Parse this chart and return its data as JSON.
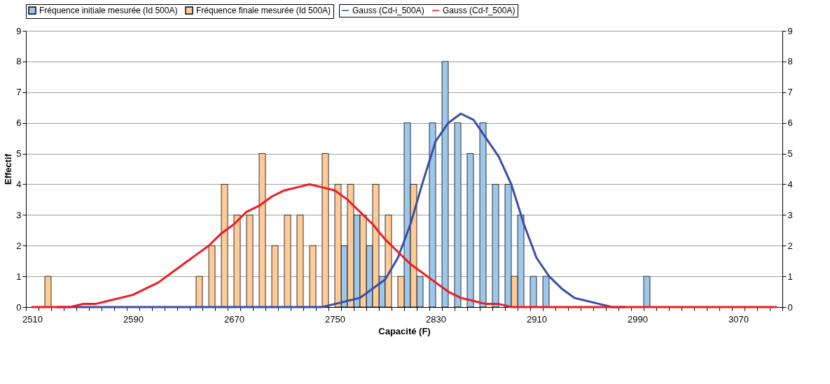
{
  "chart_data": {
    "type": "bar",
    "xlabel": "Capacité (F)",
    "ylabel": "Effectif",
    "ylim": [
      0,
      9
    ],
    "yticks": [
      0,
      1,
      2,
      3,
      4,
      5,
      6,
      7,
      8,
      9
    ],
    "y2lim": [
      0,
      9
    ],
    "y2ticks": [
      0,
      1,
      2,
      3,
      4,
      5,
      6,
      7,
      8,
      9
    ],
    "grid": "y",
    "legend": "top",
    "categories": [
      "2510",
      null,
      null,
      null,
      null,
      null,
      null,
      null,
      "2590",
      null,
      null,
      null,
      null,
      null,
      null,
      null,
      "2670",
      null,
      null,
      null,
      null,
      null,
      null,
      null,
      "2750",
      null,
      null,
      null,
      null,
      null,
      null,
      null,
      "2830",
      null,
      null,
      null,
      null,
      null,
      null,
      null,
      "2910",
      null,
      null,
      null,
      null,
      null,
      null,
      null,
      "2990",
      null,
      null,
      null,
      null,
      null,
      null,
      null,
      "3070",
      null,
      null,
      null
    ],
    "series": [
      {
        "name": "Fréquence initiale mesurée (Id 500A)",
        "color": "#9dc8ec",
        "values": [
          0,
          0,
          0,
          0,
          0,
          0,
          0,
          0,
          0,
          0,
          0,
          0,
          0,
          0,
          0,
          0,
          0,
          0,
          0,
          0,
          0,
          0,
          0,
          0,
          0,
          2,
          3,
          2,
          1,
          0,
          6,
          1,
          6,
          8,
          6,
          5,
          6,
          4,
          4,
          3,
          1,
          1,
          0,
          0,
          0,
          0,
          0,
          0,
          0,
          1,
          0,
          0,
          0,
          0,
          0,
          0,
          0,
          0,
          0,
          0
        ]
      },
      {
        "name": "Fréquence finale mesurée (Id 500A)",
        "color": "#ffcc99",
        "values": [
          0,
          1,
          0,
          0,
          0,
          0,
          0,
          0,
          0,
          0,
          0,
          0,
          0,
          1,
          2,
          4,
          3,
          3,
          5,
          2,
          3,
          3,
          2,
          5,
          4,
          4,
          3,
          4,
          3,
          1,
          4,
          0,
          0,
          0,
          0,
          0,
          0,
          0,
          1,
          0,
          0,
          0,
          0,
          0,
          0,
          0,
          0,
          0,
          0,
          0,
          0,
          0,
          0,
          0,
          0,
          0,
          0,
          0,
          0,
          0
        ]
      },
      {
        "name": "Gauss (Cd-i_500A)",
        "type": "line",
        "axis": "y2",
        "color": "#3a4fa3",
        "values": [
          null,
          null,
          0,
          0,
          0,
          0,
          0,
          0,
          0,
          0,
          0,
          0,
          0,
          0,
          0,
          0,
          0,
          0,
          0,
          0,
          0,
          0,
          0.0,
          0.0,
          0.1,
          0.2,
          0.3,
          0.6,
          0.9,
          1.6,
          2.7,
          4.1,
          5.4,
          6.0,
          6.3,
          6.1,
          5.5,
          4.9,
          4.0,
          2.7,
          1.6,
          1.0,
          0.6,
          0.3,
          0.2,
          0.1,
          0.0,
          0.0,
          null,
          null,
          null,
          null,
          null,
          null,
          null,
          null,
          null,
          null,
          null,
          null
        ]
      },
      {
        "name": "Gauss (Cd-f_500A)",
        "type": "line",
        "axis": "y2",
        "color": "#ee1c24",
        "values": [
          0.0,
          0.0,
          0.0,
          0.0,
          0.1,
          0.1,
          0.2,
          0.3,
          0.4,
          0.6,
          0.8,
          1.1,
          1.4,
          1.7,
          2.0,
          2.4,
          2.7,
          3.1,
          3.3,
          3.6,
          3.8,
          3.9,
          4.0,
          3.9,
          3.8,
          3.5,
          3.1,
          2.7,
          2.2,
          1.8,
          1.4,
          1.1,
          0.8,
          0.5,
          0.3,
          0.2,
          0.1,
          0.1,
          0.0,
          0.0,
          0.0,
          0,
          0,
          0,
          0,
          0,
          0,
          0,
          0,
          0,
          0,
          0,
          0,
          0,
          0,
          0,
          0,
          0,
          0,
          0
        ]
      }
    ]
  }
}
